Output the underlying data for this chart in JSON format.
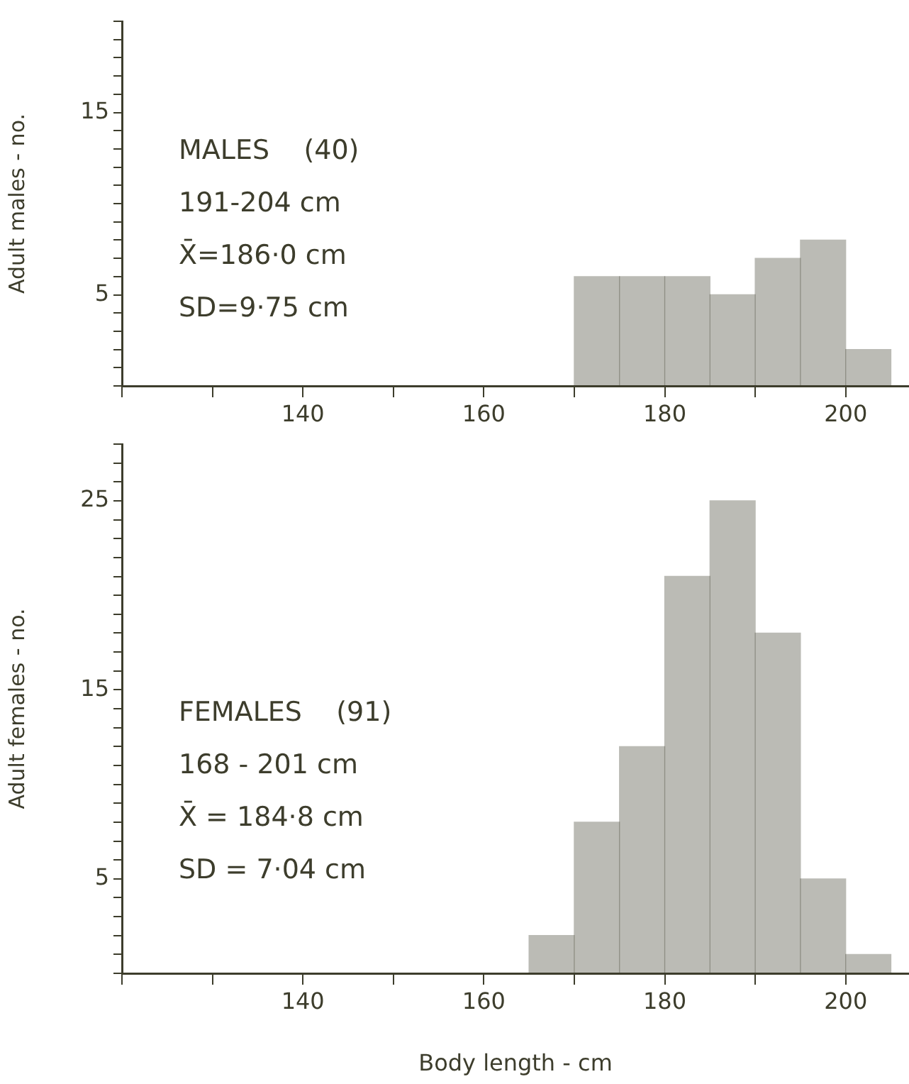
{
  "chart_data": [
    {
      "type": "histogram",
      "bins": [
        170,
        175,
        180,
        185,
        190,
        195,
        200,
        205
      ],
      "values": [
        6,
        6,
        6,
        5,
        7,
        8,
        2
      ],
      "color": "#3d3d2c",
      "ylabel": "Adult males - no.",
      "xlim": [
        120,
        207
      ],
      "xticks": [
        {
          "value": 120,
          "label": null
        },
        {
          "value": 130,
          "label": null
        },
        140,
        {
          "value": 150,
          "label": null
        },
        160,
        {
          "value": 170,
          "label": null
        },
        180,
        {
          "value": 190,
          "label": null
        },
        200
      ],
      "ylim": [
        0,
        20
      ],
      "yticks": [
        {
          "value": 0,
          "label": null
        },
        {
          "value": 1,
          "label": null
        },
        {
          "value": 2,
          "label": null
        },
        {
          "value": 3,
          "label": null
        },
        {
          "value": 4,
          "label": null
        },
        5,
        {
          "value": 6,
          "label": null
        },
        {
          "value": 7,
          "label": null
        },
        {
          "value": 8,
          "label": null
        },
        {
          "value": 9,
          "label": null
        },
        {
          "value": 10,
          "label": null
        },
        {
          "value": 11,
          "label": null
        },
        {
          "value": 12,
          "label": null
        },
        {
          "value": 13,
          "label": null
        },
        {
          "value": 14,
          "label": null
        },
        15,
        {
          "value": 16,
          "label": null
        },
        {
          "value": 17,
          "label": null
        },
        {
          "value": 18,
          "label": null
        },
        {
          "value": 19,
          "label": null
        },
        {
          "value": 20,
          "label": null
        }
      ],
      "annotations": [
        "MALES    (40)",
        "191-204 cm",
        "X̄=186·0 cm",
        "SD=9·75 cm"
      ]
    },
    {
      "type": "histogram",
      "bins": [
        165,
        170,
        175,
        180,
        185,
        190,
        195,
        200,
        205
      ],
      "values": [
        2,
        8,
        12,
        21,
        25,
        18,
        5,
        1
      ],
      "color": "#3d3d2c",
      "ylabel": "Adult females - no.",
      "xlabel": "Body length - cm",
      "xlim": [
        120,
        207
      ],
      "xticks": [
        {
          "value": 120,
          "label": null
        },
        {
          "value": 130,
          "label": null
        },
        140,
        {
          "value": 150,
          "label": null
        },
        160,
        {
          "value": 170,
          "label": null
        },
        180,
        {
          "value": 190,
          "label": null
        },
        200
      ],
      "ylim": [
        0,
        28
      ],
      "yticks": [
        {
          "value": 0,
          "label": null
        },
        {
          "value": 1,
          "label": null
        },
        {
          "value": 2,
          "label": null
        },
        {
          "value": 3,
          "label": null
        },
        {
          "value": 4,
          "label": null
        },
        5,
        {
          "value": 6,
          "label": null
        },
        {
          "value": 7,
          "label": null
        },
        {
          "value": 8,
          "label": null
        },
        {
          "value": 9,
          "label": null
        },
        {
          "value": 10,
          "label": null
        },
        {
          "value": 11,
          "label": null
        },
        {
          "value": 12,
          "label": null
        },
        {
          "value": 13,
          "label": null
        },
        {
          "value": 14,
          "label": null
        },
        15,
        {
          "value": 16,
          "label": null
        },
        {
          "value": 17,
          "label": null
        },
        {
          "value": 18,
          "label": null
        },
        {
          "value": 19,
          "label": null
        },
        {
          "value": 20,
          "label": null
        },
        {
          "value": 21,
          "label": null
        },
        {
          "value": 22,
          "label": null
        },
        {
          "value": 23,
          "label": null
        },
        {
          "value": 24,
          "label": null
        },
        25,
        {
          "value": 26,
          "label": null
        },
        {
          "value": 27,
          "label": null
        },
        {
          "value": 28,
          "label": null
        }
      ],
      "annotations": [
        "FEMALES    (91)",
        "168 - 201 cm",
        "X̄ = 184·8 cm",
        "SD = 7·04 cm"
      ]
    }
  ]
}
